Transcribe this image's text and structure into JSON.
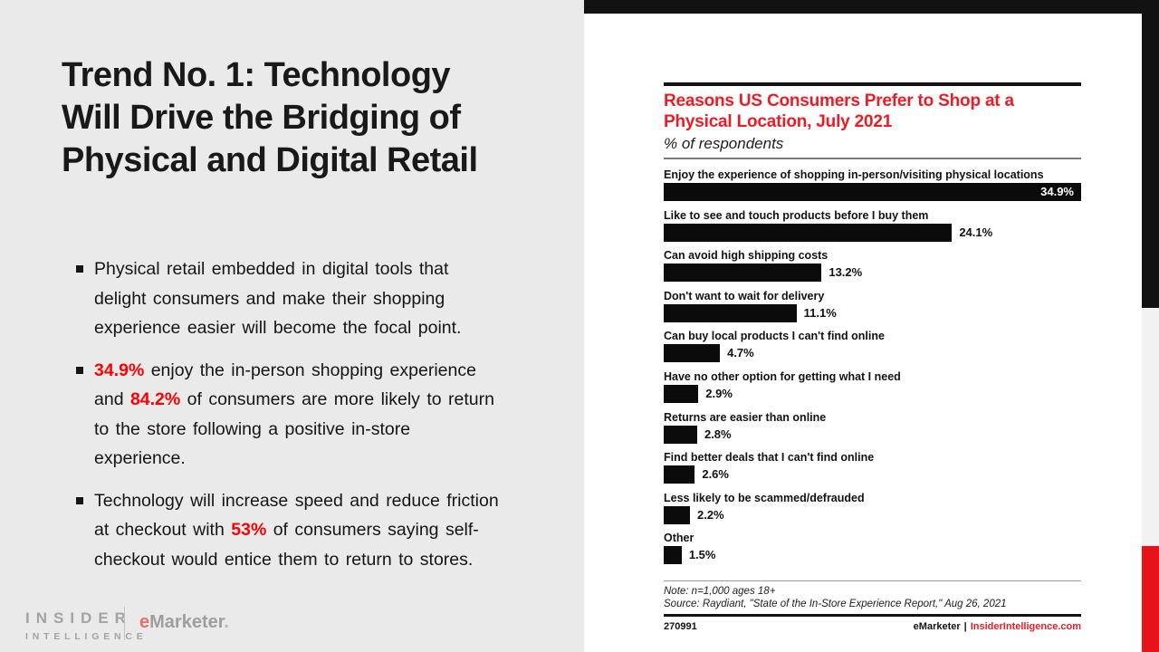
{
  "slide": {
    "title": "Trend No. 1: Technology\nWill Drive the Bridging of\nPhysical and Digital Retail",
    "bullets": [
      {
        "segments": [
          {
            "text": "Physical retail embedded in digital tools that delight consumers and make their shopping experience easier will become the focal point.",
            "highlight": false
          }
        ]
      },
      {
        "segments": [
          {
            "text": "34.9%",
            "highlight": true
          },
          {
            "text": " enjoy the in-person shopping experience and ",
            "highlight": false
          },
          {
            "text": "84.2%",
            "highlight": true
          },
          {
            "text": " of consumers are more likely to return to the store following a positive in-store experience.",
            "highlight": false
          }
        ]
      },
      {
        "segments": [
          {
            "text": "Technology will increase speed and reduce friction at checkout with ",
            "highlight": false
          },
          {
            "text": "53%",
            "highlight": true
          },
          {
            "text": " of consumers saying self-checkout would entice them to return to stores.",
            "highlight": false
          }
        ]
      }
    ],
    "logo": {
      "line1": "INSIDER",
      "line2": "INTELLIGENCE",
      "brand_e": "e",
      "brand_rest": "Marketer",
      "brand_dot": "."
    }
  },
  "colors": {
    "bullet_accent_red": "#fe0000",
    "brand_red": "#ed1c24",
    "strip_red": "#e8121d",
    "bar_black": "#0b0b0b",
    "left_panel_gray": "#eaeaea",
    "strip_gray": "#f2f2f2"
  },
  "chart_data": {
    "type": "bar",
    "orientation": "horizontal",
    "title": "Reasons US Consumers Prefer to Shop at a\nPhysical Location, July 2021",
    "subtitle": "% of respondents",
    "categories": [
      "Enjoy the experience of shopping in-person/visiting physical locations",
      "Like to see and touch products before I buy them",
      "Can avoid high shipping costs",
      "Don't want to wait for delivery",
      "Can buy local products I can't find online",
      "Have no other option for getting what I need",
      "Returns are easier than online",
      "Find better deals that I can't find online",
      "Less likely to be scammed/defrauded",
      "Other"
    ],
    "values": [
      34.9,
      24.1,
      13.2,
      11.1,
      4.7,
      2.9,
      2.8,
      2.6,
      2.2,
      1.5
    ],
    "value_labels": [
      "34.9%",
      "24.1%",
      "13.2%",
      "11.1%",
      "4.7%",
      "2.9%",
      "2.8%",
      "2.6%",
      "2.2%",
      "1.5%"
    ],
    "xlim": [
      0,
      34.9
    ],
    "grid": false,
    "legend": "none",
    "note": "Note: n=1,000 ages 18+",
    "source": "Source: Raydiant, \"State of the In-Store Experience Report,\" Aug 26, 2021",
    "chart_id": "270991",
    "footer_brand": "eMarketer",
    "footer_separator": "|",
    "footer_site": "InsiderIntelligence.com"
  }
}
